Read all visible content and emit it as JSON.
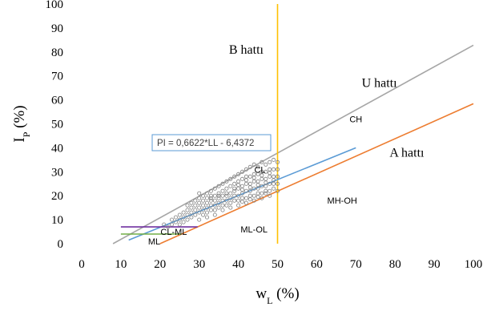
{
  "chart_data": {
    "type": "scatter",
    "title": "",
    "xlabel": {
      "main": "w",
      "sub": "L",
      "unit": " (%)"
    },
    "ylabel": {
      "main": "I",
      "sub": "P",
      "unit": " (%)"
    },
    "xlim": [
      0,
      100
    ],
    "ylim": [
      0,
      100
    ],
    "x_ticks": [
      "0",
      "10",
      "20",
      "30",
      "40",
      "50",
      "60",
      "70",
      "80",
      "90",
      "100"
    ],
    "y_ticks": [
      "0",
      "10",
      "20",
      "30",
      "40",
      "50",
      "60",
      "70",
      "80",
      "90",
      "100"
    ],
    "grid": false,
    "lines": [
      {
        "id": "u-line",
        "label": "U hattı",
        "color": "#a6a6a6",
        "points": [
          [
            8,
            0
          ],
          [
            100,
            82.8
          ]
        ]
      },
      {
        "id": "a-line",
        "label": "A hattı",
        "color": "#ed7d31",
        "points": [
          [
            20,
            0
          ],
          [
            100,
            58.4
          ]
        ]
      },
      {
        "id": "b-line",
        "label": "B hattı",
        "color": "#ffc000",
        "points": [
          [
            50,
            0
          ],
          [
            50,
            100
          ]
        ]
      },
      {
        "id": "trend-line",
        "label": "PI = 0,6622*LL - 6,4372",
        "color": "#5b9bd5",
        "points": [
          [
            12,
            1.5
          ],
          [
            70,
            40
          ]
        ]
      },
      {
        "id": "cl-ml-top",
        "label": "",
        "color": "#7030a0",
        "points": [
          [
            10,
            7
          ],
          [
            29.6,
            7
          ]
        ]
      },
      {
        "id": "cl-ml-bottom",
        "label": "",
        "color": "#70ad47",
        "points": [
          [
            10,
            4
          ],
          [
            25.5,
            4
          ]
        ]
      }
    ],
    "zones": [
      {
        "label": "CH",
        "x": 70,
        "y": 52
      },
      {
        "label": "CL",
        "x": 45.5,
        "y": 31
      },
      {
        "label": "MH-OH",
        "x": 66.5,
        "y": 18
      },
      {
        "label": "ML-OL",
        "x": 44,
        "y": 6
      },
      {
        "label": "CL-ML",
        "x": 23.5,
        "y": 5
      },
      {
        "label": "ML",
        "x": 18.5,
        "y": 1
      }
    ],
    "line_labels": [
      {
        "label": "B hattı",
        "x": 42,
        "y": 81
      },
      {
        "label": "U hattı",
        "x": 76,
        "y": 67
      },
      {
        "label": "A hattı",
        "x": 83,
        "y": 38
      }
    ],
    "equation": {
      "text": "PI = 0,6622*LL - 6,4372",
      "x_left": 18,
      "y_top": 45.5
    },
    "scatter_series": {
      "name": "",
      "color": "#7f7f7f",
      "points": [
        [
          21,
          8
        ],
        [
          22,
          7
        ],
        [
          23,
          8
        ],
        [
          23,
          10
        ],
        [
          24,
          9
        ],
        [
          24,
          11
        ],
        [
          25,
          10
        ],
        [
          25,
          12
        ],
        [
          25,
          8
        ],
        [
          26,
          11
        ],
        [
          26,
          13
        ],
        [
          26,
          9
        ],
        [
          27,
          12
        ],
        [
          27,
          14
        ],
        [
          27,
          10
        ],
        [
          27,
          16
        ],
        [
          28,
          11
        ],
        [
          28,
          13
        ],
        [
          28,
          15
        ],
        [
          28,
          17
        ],
        [
          29,
          12
        ],
        [
          29,
          14
        ],
        [
          29,
          16
        ],
        [
          29,
          18
        ],
        [
          30,
          13
        ],
        [
          30,
          15
        ],
        [
          30,
          17
        ],
        [
          30,
          19
        ],
        [
          30,
          21
        ],
        [
          31,
          12
        ],
        [
          31,
          14
        ],
        [
          31,
          16
        ],
        [
          31,
          18
        ],
        [
          31,
          20
        ],
        [
          32,
          13
        ],
        [
          32,
          15
        ],
        [
          32,
          17
        ],
        [
          32,
          19
        ],
        [
          32,
          21
        ],
        [
          33,
          14
        ],
        [
          33,
          16
        ],
        [
          33,
          18
        ],
        [
          33,
          20
        ],
        [
          33,
          22
        ],
        [
          34,
          14
        ],
        [
          34,
          16
        ],
        [
          34,
          18
        ],
        [
          34,
          20
        ],
        [
          34,
          23
        ],
        [
          35,
          15
        ],
        [
          35,
          17
        ],
        [
          35,
          19
        ],
        [
          35,
          21
        ],
        [
          35,
          24
        ],
        [
          36,
          16
        ],
        [
          36,
          18
        ],
        [
          36,
          20
        ],
        [
          36,
          22
        ],
        [
          36,
          25
        ],
        [
          37,
          16
        ],
        [
          37,
          18
        ],
        [
          37,
          20
        ],
        [
          37,
          23
        ],
        [
          37,
          26
        ],
        [
          38,
          17
        ],
        [
          38,
          19
        ],
        [
          38,
          21
        ],
        [
          38,
          24
        ],
        [
          38,
          27
        ],
        [
          39,
          18
        ],
        [
          39,
          20
        ],
        [
          39,
          22
        ],
        [
          39,
          25
        ],
        [
          39,
          28
        ],
        [
          40,
          18
        ],
        [
          40,
          20
        ],
        [
          40,
          23
        ],
        [
          40,
          26
        ],
        [
          40,
          29
        ],
        [
          41,
          19
        ],
        [
          41,
          21
        ],
        [
          41,
          24
        ],
        [
          41,
          27
        ],
        [
          41,
          30
        ],
        [
          42,
          19
        ],
        [
          42,
          22
        ],
        [
          42,
          25
        ],
        [
          42,
          28
        ],
        [
          42,
          31
        ],
        [
          43,
          20
        ],
        [
          43,
          22
        ],
        [
          43,
          25
        ],
        [
          43,
          28
        ],
        [
          43,
          32
        ],
        [
          44,
          20
        ],
        [
          44,
          23
        ],
        [
          44,
          26
        ],
        [
          44,
          29
        ],
        [
          44,
          33
        ],
        [
          45,
          21
        ],
        [
          45,
          23
        ],
        [
          45,
          26
        ],
        [
          45,
          29
        ],
        [
          45,
          32
        ],
        [
          46,
          21
        ],
        [
          46,
          24
        ],
        [
          46,
          27
        ],
        [
          46,
          30
        ],
        [
          46,
          34
        ],
        [
          47,
          22
        ],
        [
          47,
          24
        ],
        [
          47,
          27
        ],
        [
          47,
          30
        ],
        [
          47,
          33
        ],
        [
          48,
          22
        ],
        [
          48,
          25
        ],
        [
          48,
          28
        ],
        [
          48,
          31
        ],
        [
          48,
          34
        ],
        [
          49,
          23
        ],
        [
          49,
          25
        ],
        [
          49,
          28
        ],
        [
          49,
          31
        ],
        [
          49,
          35
        ],
        [
          50,
          22
        ],
        [
          50,
          25
        ],
        [
          50,
          28
        ],
        [
          50,
          31
        ],
        [
          50,
          34
        ],
        [
          36,
          14
        ],
        [
          38,
          15
        ],
        [
          40,
          16
        ],
        [
          42,
          17
        ],
        [
          44,
          18
        ],
        [
          46,
          19
        ],
        [
          48,
          20
        ],
        [
          34,
          12
        ],
        [
          32,
          11
        ],
        [
          30,
          10
        ],
        [
          45,
          24.5
        ],
        [
          47,
          25.5
        ],
        [
          43,
          23.5
        ],
        [
          41,
          22.5
        ],
        [
          39,
          23
        ],
        [
          37,
          21
        ],
        [
          35,
          20
        ],
        [
          33,
          19
        ],
        [
          44,
          27.5
        ],
        [
          46,
          28.5
        ],
        [
          48,
          29.5
        ],
        [
          42,
          26.5
        ],
        [
          40,
          24.5
        ],
        [
          49,
          26.5
        ],
        [
          47,
          21
        ],
        [
          45,
          19.5
        ],
        [
          43,
          18.5
        ],
        [
          41,
          17.5
        ]
      ]
    }
  }
}
